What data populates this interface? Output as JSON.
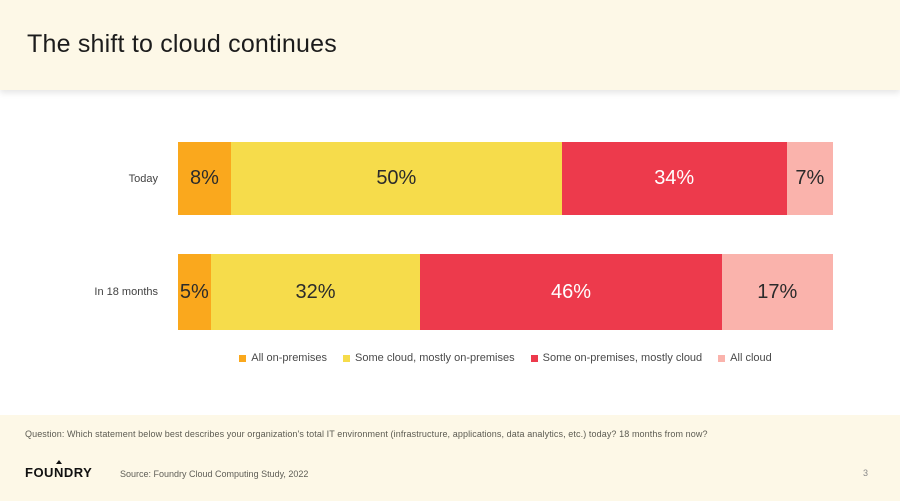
{
  "slide": {
    "title": "The shift to cloud continues",
    "page_number": "3"
  },
  "chart_data": {
    "type": "bar",
    "variant": "horizontal-stacked-percent",
    "title": "",
    "categories": [
      "Today",
      "In 18 months"
    ],
    "series": [
      {
        "name": "All on-premises",
        "color": "#FAA81D",
        "label_color": "#2b2b2b",
        "values": [
          8,
          5
        ]
      },
      {
        "name": "Some cloud, mostly on-premises",
        "color": "#F6DC4B",
        "label_color": "#2b2b2b",
        "values": [
          50,
          32
        ]
      },
      {
        "name": "Some on-premises, mostly cloud",
        "color": "#ED3A4C",
        "label_color": "#FFFFFF",
        "values": [
          34,
          46
        ]
      },
      {
        "name": "All cloud",
        "color": "#FAB3AC",
        "label_color": "#2b2b2b",
        "values": [
          7,
          17
        ]
      }
    ],
    "value_suffix": "%",
    "data_labels": [
      [
        "8%",
        "50%",
        "34%",
        "7%"
      ],
      [
        "5%",
        "32%",
        "46%",
        "17%"
      ]
    ],
    "legend_position": "bottom",
    "grid": false,
    "xlim": [
      0,
      100
    ]
  },
  "footnote": {
    "question": "Question: Which statement below best describes your organization's total IT environment (infrastructure, applications, data analytics,  etc.) today? 18 months from now?"
  },
  "footer": {
    "logo_prefix": "FOU",
    "logo_n": "N",
    "logo_suffix": "DRY",
    "source": "Source: Foundry Cloud Computing Study, 2022"
  },
  "colors": {
    "band_cream": "#FDF8E7",
    "content_bg": "#FFFFFF"
  }
}
